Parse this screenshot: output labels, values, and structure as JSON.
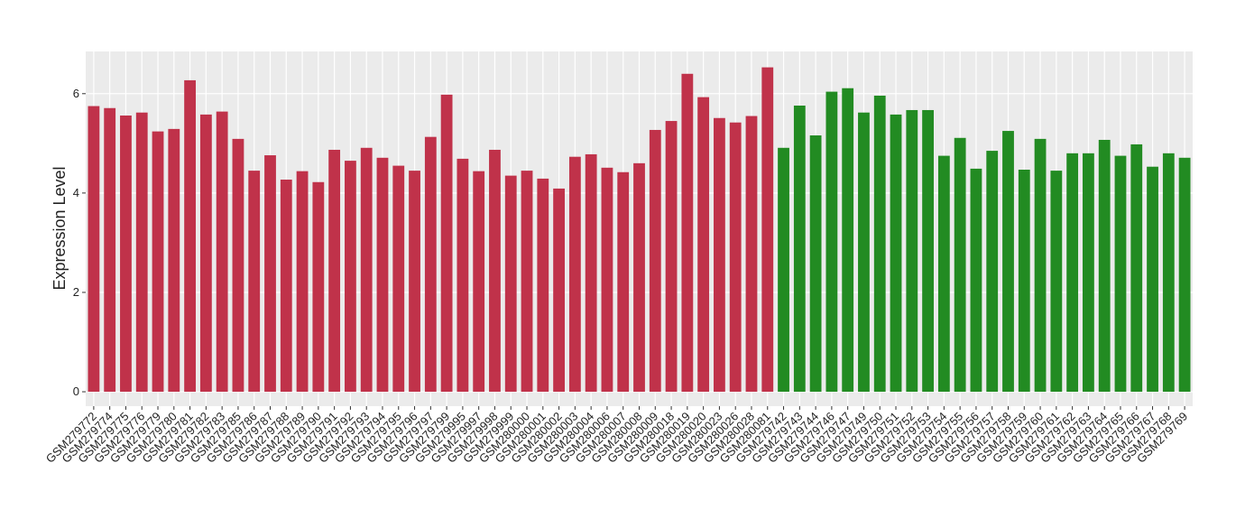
{
  "chart_data": {
    "type": "bar",
    "y_label": "Expression Level",
    "categories": [
      "GSM279772",
      "GSM279774",
      "GSM279775",
      "GSM279776",
      "GSM279779",
      "GSM279780",
      "GSM279781",
      "GSM279782",
      "GSM279783",
      "GSM279785",
      "GSM279786",
      "GSM279787",
      "GSM279788",
      "GSM279789",
      "GSM279790",
      "GSM279791",
      "GSM279792",
      "GSM279793",
      "GSM279794",
      "GSM279795",
      "GSM279796",
      "GSM279797",
      "GSM279799",
      "GSM279995",
      "GSM279997",
      "GSM279998",
      "GSM279999",
      "GSM280000",
      "GSM280001",
      "GSM280002",
      "GSM280003",
      "GSM280004",
      "GSM280006",
      "GSM280007",
      "GSM280008",
      "GSM280009",
      "GSM280018",
      "GSM280019",
      "GSM280020",
      "GSM280023",
      "GSM280026",
      "GSM280028",
      "GSM280081",
      "GSM279742",
      "GSM279743",
      "GSM279744",
      "GSM279746",
      "GSM279747",
      "GSM279749",
      "GSM279750",
      "GSM279751",
      "GSM279752",
      "GSM279753",
      "GSM279754",
      "GSM279755",
      "GSM279756",
      "GSM279757",
      "GSM279758",
      "GSM279759",
      "GSM279760",
      "GSM279761",
      "GSM279762",
      "GSM279763",
      "GSM279764",
      "GSM279765",
      "GSM279766",
      "GSM279767",
      "GSM279768",
      "GSM279769"
    ],
    "values": [
      5.75,
      5.71,
      5.56,
      5.62,
      5.24,
      5.29,
      6.27,
      5.58,
      5.64,
      5.09,
      4.45,
      4.76,
      4.27,
      4.44,
      4.22,
      4.87,
      4.65,
      4.91,
      4.71,
      4.55,
      4.45,
      5.13,
      5.98,
      4.69,
      4.44,
      4.87,
      4.35,
      4.45,
      4.29,
      4.09,
      4.73,
      4.78,
      4.51,
      4.42,
      4.6,
      5.27,
      5.45,
      6.4,
      5.93,
      5.51,
      5.42,
      5.55,
      6.53,
      4.91,
      5.76,
      5.16,
      6.04,
      6.11,
      5.62,
      5.96,
      5.58,
      5.67,
      5.67,
      4.75,
      5.11,
      4.49,
      4.85,
      5.25,
      4.47,
      5.09,
      4.45,
      4.8,
      4.8,
      5.07,
      4.75,
      4.98,
      4.53,
      4.8,
      4.71
    ],
    "colors": [
      "#c0324a",
      "#c0324a",
      "#c0324a",
      "#c0324a",
      "#c0324a",
      "#c0324a",
      "#c0324a",
      "#c0324a",
      "#c0324a",
      "#c0324a",
      "#c0324a",
      "#c0324a",
      "#c0324a",
      "#c0324a",
      "#c0324a",
      "#c0324a",
      "#c0324a",
      "#c0324a",
      "#c0324a",
      "#c0324a",
      "#c0324a",
      "#c0324a",
      "#c0324a",
      "#c0324a",
      "#c0324a",
      "#c0324a",
      "#c0324a",
      "#c0324a",
      "#c0324a",
      "#c0324a",
      "#c0324a",
      "#c0324a",
      "#c0324a",
      "#c0324a",
      "#c0324a",
      "#c0324a",
      "#c0324a",
      "#c0324a",
      "#c0324a",
      "#c0324a",
      "#c0324a",
      "#c0324a",
      "#c0324a",
      "#228b22",
      "#228b22",
      "#228b22",
      "#228b22",
      "#228b22",
      "#228b22",
      "#228b22",
      "#228b22",
      "#228b22",
      "#228b22",
      "#228b22",
      "#228b22",
      "#228b22",
      "#228b22",
      "#228b22",
      "#228b22",
      "#228b22",
      "#228b22",
      "#228b22",
      "#228b22",
      "#228b22",
      "#228b22",
      "#228b22",
      "#228b22",
      "#228b22",
      "#228b22"
    ],
    "ylim": [
      -0.29,
      6.85
    ],
    "yticks": [
      0,
      2,
      4,
      6
    ],
    "grid": true
  }
}
